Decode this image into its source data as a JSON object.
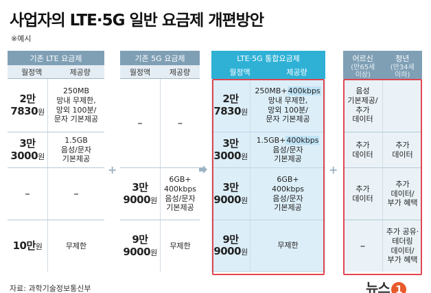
{
  "title": "사업자의 LTE·5G 일반 요금제 개편방안",
  "subtitle": "※예시",
  "source": "자료: 과학기술정보통신부",
  "logo": {
    "text": "뉴스",
    "mark": "1"
  },
  "colors": {
    "panel_header": "#7f9fb5",
    "integrated_header": "#2fb1d6",
    "highlight_border": "#e0454f",
    "operator": "#9db4c4"
  },
  "lte": {
    "header": "기존 LTE 요금제",
    "col_price": "월정액",
    "col_data": "제공량",
    "rows": [
      {
        "price_a": "2만",
        "price_b": "7830",
        "unit": "원",
        "data": "250MB\n망내 무제한,\n망외 100분/\n문자 기본제공"
      },
      {
        "price_a": "3만",
        "price_b": "3000",
        "unit": "원",
        "data": "1.5GB\n음성/문자\n기본제공"
      },
      {
        "price_a": "–",
        "price_b": "",
        "unit": "",
        "data": "–"
      },
      {
        "price_a": "10만",
        "price_b": "",
        "unit": "원",
        "data": "무제한"
      }
    ]
  },
  "fiveg": {
    "header": "기존 5G 요금제",
    "col_price": "월정액",
    "col_data": "제공량",
    "rows": [
      {
        "price_a": "–",
        "price_b": "",
        "unit": "",
        "data": "–"
      },
      {
        "price_a": "",
        "price_b": "",
        "unit": "",
        "data": ""
      },
      {
        "price_a": "3만",
        "price_b": "9000",
        "unit": "원",
        "data": "6GB+\n400kbps\n음성/문자\n기본제공"
      },
      {
        "price_a": "9만",
        "price_b": "9000",
        "unit": "원",
        "data": "무제한"
      }
    ]
  },
  "integrated": {
    "header": "LTE·5G 통합요금제",
    "col_price": "월정액",
    "col_data": "제공량",
    "rows": [
      {
        "price_a": "2만",
        "price_b": "7830",
        "unit": "원",
        "data_hl_pre": "250MB+",
        "data_hl": "400kbps",
        "data": "망내 무제한,\n망외 100분/\n문자 기본제공"
      },
      {
        "price_a": "3만",
        "price_b": "3000",
        "unit": "원",
        "data_hl_pre": "1.5GB+",
        "data_hl": "400kbps",
        "data": "음성/문자\n기본제공"
      },
      {
        "price_a": "3만",
        "price_b": "9000",
        "unit": "원",
        "data_hl_pre": "",
        "data_hl": "",
        "data": "6GB+\n400kbps\n음성/문자\n기본제공"
      },
      {
        "price_a": "9만",
        "price_b": "9000",
        "unit": "원",
        "data_hl_pre": "",
        "data_hl": "",
        "data": "무제한"
      }
    ]
  },
  "special": {
    "senior": {
      "name": "어르신",
      "note": "(만65세\n이상)"
    },
    "youth": {
      "name": "청년",
      "note": "(만34세\n이하)"
    },
    "rows": [
      {
        "senior": "음성\n기본제공/\n추가\n데이터",
        "youth": ""
      },
      {
        "senior": "추가\n데이터",
        "youth": "추가\n데이터"
      },
      {
        "senior": "추가\n데이터",
        "youth": "추가\n데이터/\n부가 혜택"
      },
      {
        "senior": "–",
        "youth": "추가 공유·\n테더링\n데이터/\n부가 혜택"
      }
    ]
  },
  "operators": {
    "plus": "+",
    "arrow": "arrow-right-icon"
  }
}
